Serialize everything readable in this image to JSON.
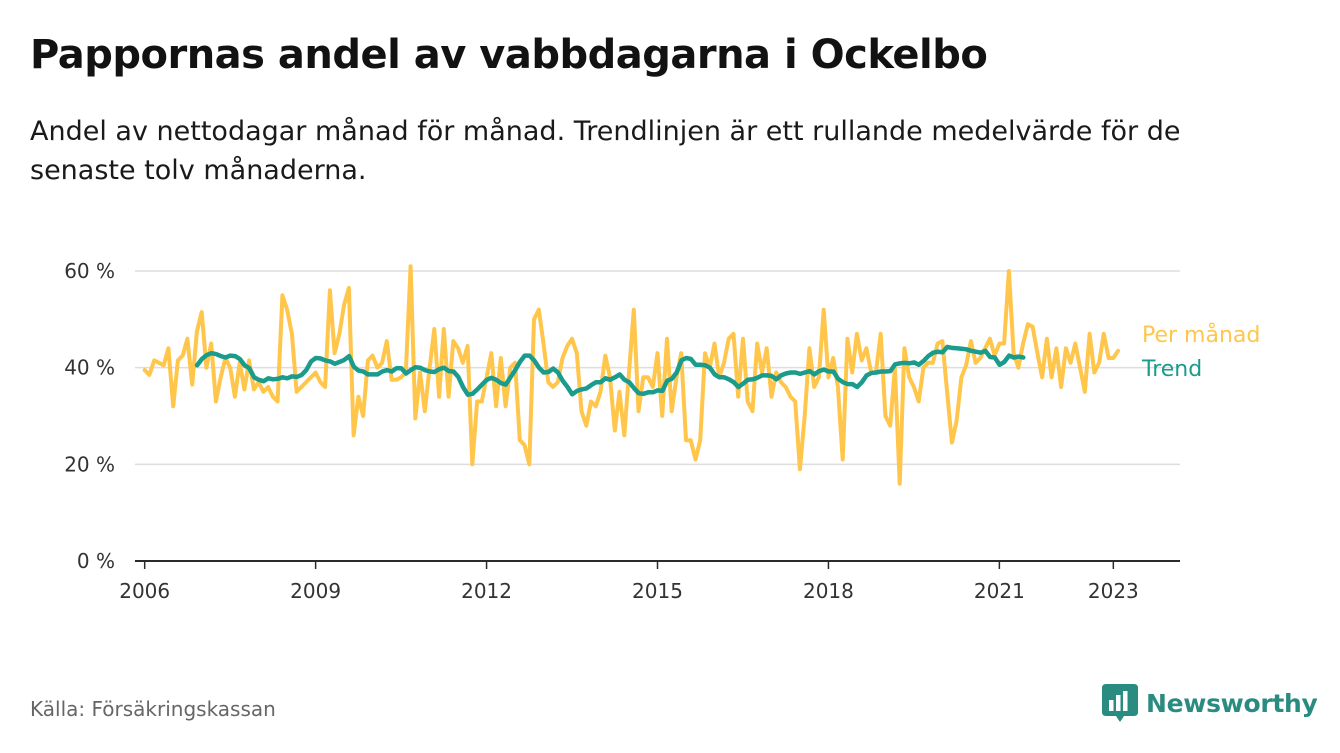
{
  "title": "Pappornas andel av vabbdagarna i Ockelbo",
  "subtitle": "Andel av nettodagar månad för månad. Trendlinjen är ett rullande medelvärde för de senaste tolv månaderna.",
  "source": "Källa: Försäkringskassan",
  "brand": "Newsworthy",
  "chart_data": {
    "type": "line",
    "title": "Pappornas andel av vabbdagarna i Ockelbo",
    "ylim": [
      0,
      60
    ],
    "yticks": [
      0,
      20,
      40,
      60
    ],
    "ytick_labels": [
      "0 %",
      "20 %",
      "40 %",
      "60 %"
    ],
    "xlim": [
      2005.83,
      2024.17
    ],
    "xticks": [
      2006,
      2009,
      2012,
      2015,
      2018,
      2021,
      2023
    ],
    "xtick_labels": [
      "2006",
      "2009",
      "2012",
      "2015",
      "2018",
      "2021",
      "2023"
    ],
    "grid": "horizontal",
    "legend_placement": "right, at line ends",
    "series": [
      {
        "name": "Per månad",
        "color": "#ffc64b",
        "x_start": 2006.0,
        "x_step": 0.0833333,
        "values": [
          39.5,
          38.5,
          41.5,
          41,
          40.5,
          44,
          32,
          41.5,
          42.5,
          46,
          36.5,
          47.5,
          51.5,
          40,
          45,
          33,
          38,
          42,
          40,
          34,
          41,
          35.5,
          41.5,
          35.5,
          37,
          35,
          36,
          34,
          33,
          55,
          52,
          47,
          35,
          36,
          37,
          38,
          39,
          37,
          36,
          56,
          43,
          47,
          53,
          56.5,
          26,
          34,
          30,
          41.5,
          42.5,
          40,
          41,
          45.5,
          37.5,
          37.5,
          38,
          39,
          61,
          29.5,
          39,
          31,
          40,
          48,
          34,
          48,
          34,
          45.5,
          44,
          41,
          44.5,
          20,
          33,
          33,
          38,
          43,
          32,
          42,
          32,
          40,
          41,
          25,
          24,
          20,
          50,
          52,
          45,
          37,
          36,
          37,
          42,
          44.5,
          46,
          43,
          31,
          28,
          33,
          32,
          35,
          42.5,
          38,
          27,
          35,
          26,
          39,
          52,
          31,
          38,
          38,
          36,
          43,
          30,
          46,
          31,
          38,
          43,
          25,
          25,
          21,
          25,
          43,
          40,
          45,
          38,
          41,
          46,
          47,
          34,
          46,
          33,
          31,
          45,
          39,
          44,
          34,
          39,
          37,
          36,
          34,
          33,
          19,
          30,
          44,
          36,
          38,
          52,
          38,
          42,
          36,
          21,
          46,
          39,
          47,
          41.5,
          44,
          39,
          39,
          47,
          30,
          28,
          40,
          16,
          44,
          38,
          36,
          33,
          40,
          41,
          41,
          45,
          45.5,
          35,
          24.5,
          29,
          38,
          40.5,
          45.5,
          41,
          42,
          44,
          46,
          42.5,
          45,
          45,
          60,
          43,
          40,
          45,
          49,
          48.5,
          43,
          38,
          46,
          38,
          44,
          36,
          44,
          41,
          45,
          40,
          35,
          47,
          39,
          41,
          47,
          42,
          42,
          43.5
        ]
      },
      {
        "name": "Trend",
        "color": "#1a9b8b",
        "x_start": 2006.92,
        "x_step": 0.0833333,
        "values": [
          40.5,
          41.8,
          42.6,
          43,
          42.8,
          42.4,
          42.1,
          42.5,
          42.4,
          41.8,
          40.5,
          39.9,
          38,
          37.5,
          37.2,
          37.8,
          37.6,
          37.7,
          38,
          37.8,
          38.2,
          38.1,
          38.5,
          39.5,
          41.3,
          42,
          41.9,
          41.5,
          41.3,
          40.8,
          41.2,
          41.6,
          42.4,
          40.2,
          39.4,
          39.2,
          38.6,
          38.6,
          38.6,
          39.2,
          39.5,
          39.2,
          39.9,
          39.9,
          38.8,
          39.5,
          40.1,
          40,
          39.5,
          39.2,
          39.1,
          39.7,
          40,
          39.3,
          39.2,
          38.1,
          36,
          34.4,
          34.6,
          35.5,
          36.5,
          37.5,
          37.9,
          37.5,
          36.8,
          36.5,
          38,
          39.5,
          41.2,
          42.5,
          42.5,
          41.5,
          40,
          39,
          39.1,
          39.8,
          39,
          37.3,
          36,
          34.5,
          35.2,
          35.5,
          35.7,
          36.4,
          37,
          37,
          37.8,
          37.5,
          38,
          38.6,
          37.5,
          37,
          35.8,
          34.7,
          34.6,
          34.9,
          34.9,
          35.3,
          35.2,
          37.3,
          37.7,
          39,
          41.5,
          42,
          41.8,
          40.6,
          40.6,
          40.5,
          40,
          38.6,
          38,
          38,
          37.6,
          37,
          36,
          36.7,
          37.5,
          37.6,
          37.9,
          38.4,
          38.4,
          38.3,
          37.6,
          38.4,
          38.8,
          39,
          39,
          38.7,
          39,
          39.3,
          38.6,
          39.3,
          39.6,
          39.2,
          39.2,
          37.7,
          37,
          36.6,
          36.6,
          36,
          37,
          38.4,
          38.9,
          39,
          39.2,
          39.2,
          39.3,
          40.7,
          40.9,
          41,
          40.9,
          41.1,
          40.6,
          41.4,
          42.4,
          43.1,
          43.3,
          43.2,
          44.3,
          44.1,
          44,
          43.9,
          43.8,
          43.5,
          43.3,
          43.1,
          43.5,
          42.2,
          42.1,
          40.6,
          41.2,
          42.5,
          42.1,
          42.3,
          42.1
        ]
      }
    ]
  }
}
